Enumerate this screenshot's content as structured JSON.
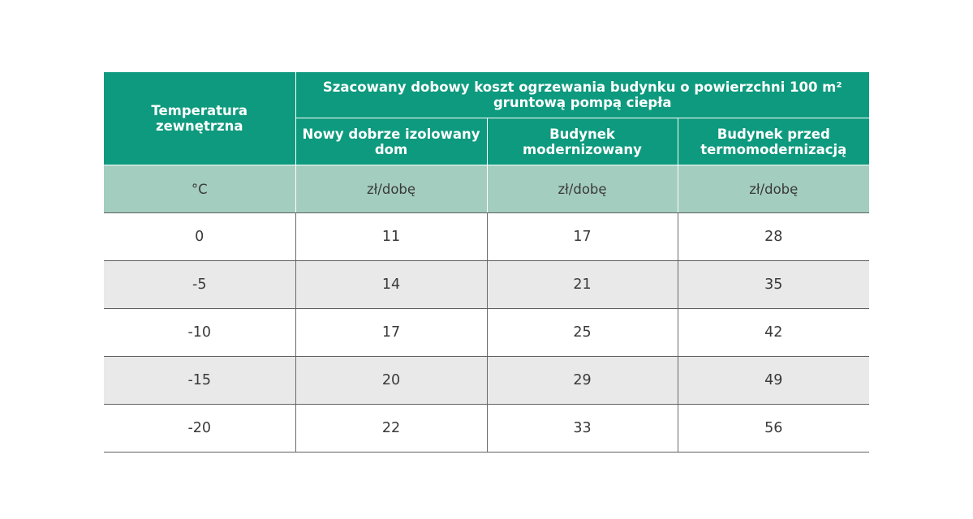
{
  "table": {
    "header": {
      "temperature_label": "Temperatura zewnętrzna",
      "group_title": "Szacowany dobowy koszt ogrzewania budynku o powierzchni 100 m² gruntową pompą ciepła",
      "columns": [
        "Nowy dobrze izolowany dom",
        "Budynek modernizowany",
        "Budynek przed termomodernizacją"
      ]
    },
    "units": [
      "°C",
      "zł/dobę",
      "zł/dobę",
      "zł/dobę"
    ],
    "rows": [
      [
        "0",
        "11",
        "17",
        "28"
      ],
      [
        "-5",
        "14",
        "21",
        "35"
      ],
      [
        "-10",
        "17",
        "25",
        "42"
      ],
      [
        "-15",
        "20",
        "29",
        "49"
      ],
      [
        "-20",
        "22",
        "33",
        "56"
      ]
    ]
  },
  "colors": {
    "header_green": "#0e9a7e",
    "unit_row_green": "#a3cdbf",
    "stripe_gray": "#e9e9e9"
  }
}
